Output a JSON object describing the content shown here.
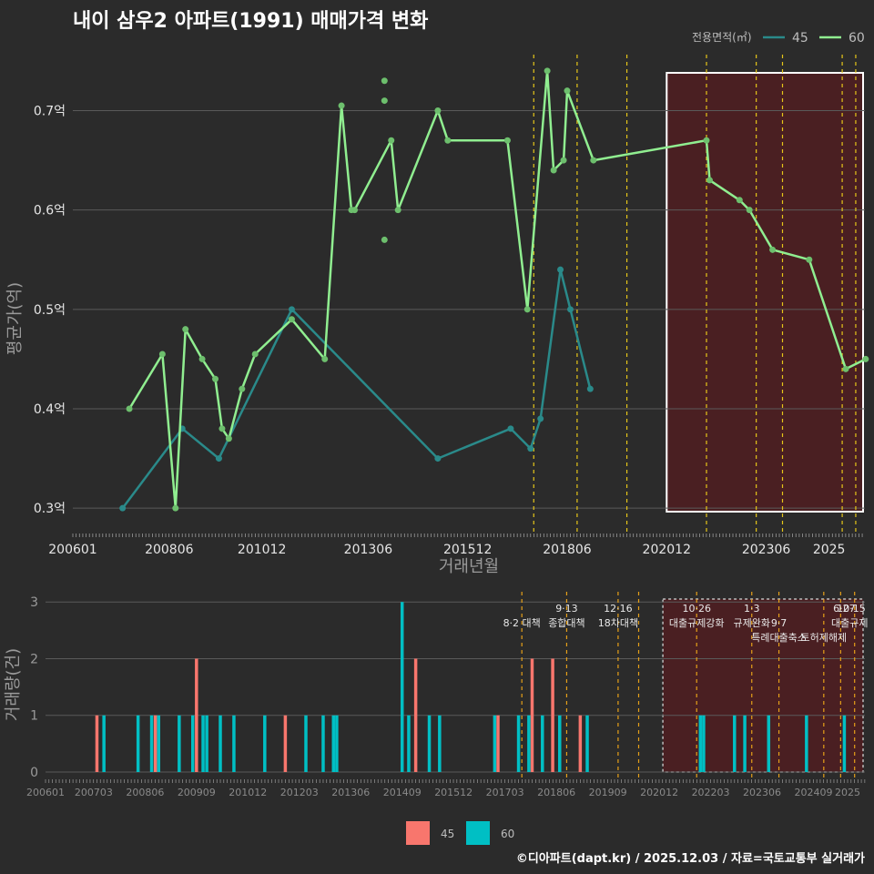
{
  "title": "내이 삼우2 아파트(1991) 매매가격 변화",
  "footer": "©디아파트(dapt.kr) / 2025.12.03 / 자료=국토교통부 실거래가",
  "colors": {
    "background": "#2b2b2b",
    "grid": "#5a5a5a",
    "series45_line": "#2a8a8a",
    "series60_line": "#90ee90",
    "series60_point": "#6dbf6d",
    "bar45": "#f8766d",
    "bar60": "#00bfc4",
    "policy_line": "#e6c619",
    "policy_line_bottom": "#e6a019",
    "highlight_fill": "#4a1f22"
  },
  "chart_data": [
    {
      "type": "line",
      "title": "내이 삼우2 아파트(1991) 매매가격 변화",
      "xlabel": "거래년월",
      "ylabel": "평균가(억)",
      "ylim": [
        0.28,
        0.76
      ],
      "xlim": [
        2006.0,
        2025.9
      ],
      "y_ticks": [
        {
          "v": 0.3,
          "label": "0.3억"
        },
        {
          "v": 0.4,
          "label": "0.4억"
        },
        {
          "v": 0.5,
          "label": "0.5억"
        },
        {
          "v": 0.6,
          "label": "0.6억"
        },
        {
          "v": 0.7,
          "label": "0.7억"
        }
      ],
      "x_ticks": [
        {
          "v": 2006.0,
          "label": "200601"
        },
        {
          "v": 2008.42,
          "label": "200806"
        },
        {
          "v": 2010.75,
          "label": "201012"
        },
        {
          "v": 2013.42,
          "label": "201306"
        },
        {
          "v": 2015.92,
          "label": "201512"
        },
        {
          "v": 2018.42,
          "label": "201806"
        },
        {
          "v": 2020.92,
          "label": "202012"
        },
        {
          "v": 2023.42,
          "label": "202306"
        },
        {
          "v": 2025.0,
          "label": "2025"
        }
      ],
      "legend_title": "전용면적(㎡)",
      "series": [
        {
          "name": "45",
          "points": [
            [
              2007.25,
              0.3
            ],
            [
              2008.75,
              0.38
            ],
            [
              2009.67,
              0.35
            ],
            [
              2011.5,
              0.5
            ],
            [
              2015.17,
              0.35
            ],
            [
              2017.0,
              0.38
            ],
            [
              2017.5,
              0.36
            ],
            [
              2017.75,
              0.39
            ],
            [
              2018.25,
              0.54
            ],
            [
              2018.5,
              0.5
            ],
            [
              2019.0,
              0.42
            ]
          ]
        },
        {
          "name": "60",
          "points": [
            [
              2007.42,
              0.4
            ],
            [
              2008.25,
              0.455
            ],
            [
              2008.58,
              0.3
            ],
            [
              2008.83,
              0.48
            ],
            [
              2009.25,
              0.45
            ],
            [
              2009.58,
              0.43
            ],
            [
              2009.75,
              0.38
            ],
            [
              2009.92,
              0.37
            ],
            [
              2010.25,
              0.42
            ],
            [
              2010.58,
              0.455
            ],
            [
              2011.5,
              0.49
            ],
            [
              2012.33,
              0.45
            ],
            [
              2012.75,
              0.705
            ],
            [
              2013.0,
              0.6
            ],
            [
              2013.08,
              0.6
            ],
            [
              2014.0,
              0.67
            ],
            [
              2014.17,
              0.6
            ],
            [
              2015.17,
              0.7
            ],
            [
              2015.42,
              0.67
            ],
            [
              2016.92,
              0.67
            ],
            [
              2017.42,
              0.5
            ],
            [
              2017.92,
              0.74
            ],
            [
              2018.08,
              0.64
            ],
            [
              2018.33,
              0.65
            ],
            [
              2018.42,
              0.72
            ],
            [
              2019.08,
              0.65
            ],
            [
              2021.92,
              0.67
            ],
            [
              2022.0,
              0.63
            ],
            [
              2022.75,
              0.61
            ],
            [
              2023.0,
              0.6
            ],
            [
              2023.58,
              0.56
            ],
            [
              2024.5,
              0.55
            ],
            [
              2025.42,
              0.44
            ],
            [
              2025.92,
              0.45
            ]
          ],
          "extra_points": [
            [
              2013.83,
              0.73
            ],
            [
              2013.83,
              0.71
            ],
            [
              2013.83,
              0.57
            ]
          ]
        }
      ],
      "policy_lines": [
        2017.58,
        2018.67,
        2019.92,
        2021.92,
        2023.17,
        2023.83,
        2025.33,
        2025.67,
        2026.0
      ],
      "highlight_range": [
        2020.92,
        2026.08
      ]
    },
    {
      "type": "bar",
      "xlabel": "",
      "ylabel": "거래량(건)",
      "ylim": [
        0,
        3.1
      ],
      "y_ticks": [
        0,
        1,
        2,
        3
      ],
      "x_ticks": [
        {
          "v": 2006.0,
          "label": "200601"
        },
        {
          "v": 2007.17,
          "label": "200703"
        },
        {
          "v": 2008.42,
          "label": "200806"
        },
        {
          "v": 2009.67,
          "label": "200909"
        },
        {
          "v": 2010.92,
          "label": "201012"
        },
        {
          "v": 2012.17,
          "label": "201203"
        },
        {
          "v": 2013.42,
          "label": "201306"
        },
        {
          "v": 2014.67,
          "label": "201409"
        },
        {
          "v": 2015.92,
          "label": "201512"
        },
        {
          "v": 2017.17,
          "label": "201703"
        },
        {
          "v": 2018.42,
          "label": "201806"
        },
        {
          "v": 2019.67,
          "label": "201909"
        },
        {
          "v": 2020.92,
          "label": "202012"
        },
        {
          "v": 2022.17,
          "label": "202203"
        },
        {
          "v": 2023.42,
          "label": "202306"
        },
        {
          "v": 2024.67,
          "label": "202409"
        },
        {
          "v": 2025.5,
          "label": "2025"
        }
      ],
      "series": [
        {
          "name": "45",
          "bars": [
            [
              2007.25,
              1
            ],
            [
              2008.67,
              1
            ],
            [
              2009.67,
              2
            ],
            [
              2011.83,
              1
            ],
            [
              2015.0,
              2
            ],
            [
              2017.0,
              1
            ],
            [
              2017.83,
              2
            ],
            [
              2018.33,
              2
            ],
            [
              2019.0,
              1
            ]
          ]
        },
        {
          "name": "60",
          "bars": [
            [
              2007.42,
              1
            ],
            [
              2008.25,
              1
            ],
            [
              2008.58,
              1
            ],
            [
              2008.75,
              1
            ],
            [
              2009.25,
              1
            ],
            [
              2009.58,
              1
            ],
            [
              2009.83,
              1
            ],
            [
              2009.92,
              1
            ],
            [
              2010.25,
              1
            ],
            [
              2010.58,
              1
            ],
            [
              2011.33,
              1
            ],
            [
              2012.33,
              1
            ],
            [
              2012.75,
              1
            ],
            [
              2013.0,
              1
            ],
            [
              2013.08,
              1
            ],
            [
              2014.67,
              3
            ],
            [
              2014.83,
              1
            ],
            [
              2015.33,
              1
            ],
            [
              2015.58,
              1
            ],
            [
              2016.92,
              1
            ],
            [
              2017.5,
              1
            ],
            [
              2017.75,
              1
            ],
            [
              2018.08,
              1
            ],
            [
              2018.5,
              1
            ],
            [
              2019.17,
              1
            ],
            [
              2021.92,
              1
            ],
            [
              2022.0,
              1
            ],
            [
              2022.75,
              1
            ],
            [
              2023.0,
              1
            ],
            [
              2023.58,
              1
            ],
            [
              2024.5,
              1
            ],
            [
              2025.42,
              1
            ],
            [
              2025.92,
              1
            ]
          ]
        }
      ],
      "policy_lines": [
        2017.58,
        2018.67,
        2019.92,
        2020.42,
        2021.83,
        2023.17,
        2023.83,
        2024.92,
        2025.33,
        2025.67,
        2026.0
      ],
      "policy_labels": [
        {
          "x": 2017.58,
          "row": 1,
          "text": "8·2 대책"
        },
        {
          "x": 2018.67,
          "row": 0,
          "text": "9·13"
        },
        {
          "x": 2018.67,
          "row": 1,
          "text": "종합대책"
        },
        {
          "x": 2019.92,
          "row": 0,
          "text": "12·16"
        },
        {
          "x": 2019.92,
          "row": 1,
          "text": "18차대책"
        },
        {
          "x": 2021.83,
          "row": 0,
          "text": "10·26"
        },
        {
          "x": 2021.83,
          "row": 1,
          "text": "대출규제강화"
        },
        {
          "x": 2023.17,
          "row": 0,
          "text": "1·3"
        },
        {
          "x": 2023.17,
          "row": 1,
          "text": "규제완화"
        },
        {
          "x": 2023.83,
          "row": 1,
          "text": "9·7"
        },
        {
          "x": 2023.83,
          "row": 2,
          "text": "특례대출축소"
        },
        {
          "x": 2024.92,
          "row": 2,
          "text": "토허제해제"
        },
        {
          "x": 2025.42,
          "row": 0,
          "text": "6·27"
        },
        {
          "x": 2025.75,
          "row": 0,
          "text": "10·15"
        },
        {
          "x": 2025.55,
          "row": 1,
          "text": "대출규제"
        }
      ],
      "highlight_range": [
        2020.92,
        2026.08
      ]
    }
  ],
  "legend_bottom": [
    {
      "name": "45"
    },
    {
      "name": "60"
    }
  ]
}
